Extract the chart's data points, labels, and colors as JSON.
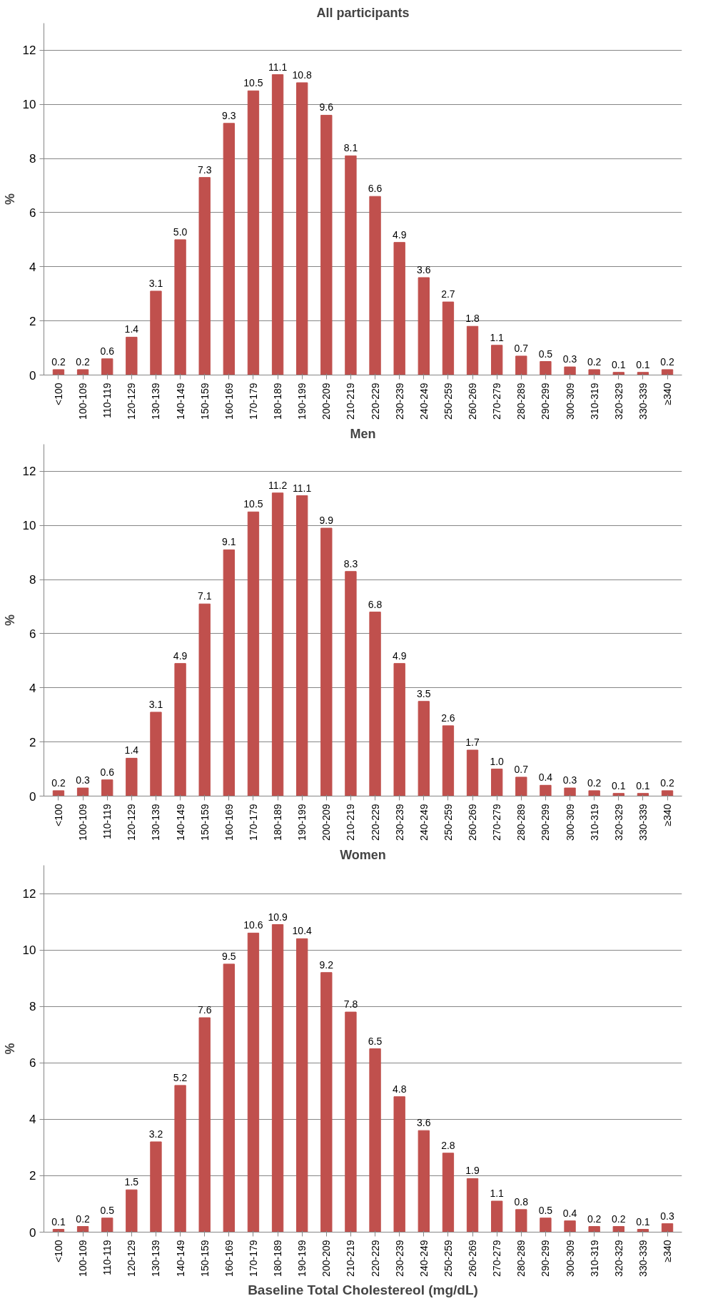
{
  "chart_data": [
    {
      "type": "bar",
      "title": "All participants",
      "ylabel": "%",
      "categories": [
        "<100",
        "100-109",
        "110-119",
        "120-129",
        "130-139",
        "140-149",
        "150-159",
        "160-169",
        "170-179",
        "180-189",
        "190-199",
        "200-209",
        "210-219",
        "220-229",
        "230-239",
        "240-249",
        "250-259",
        "260-269",
        "270-279",
        "280-289",
        "290-299",
        "300-309",
        "310-319",
        "320-329",
        "330-339",
        "≥340"
      ],
      "color": "#c0504d",
      "values": [
        0.2,
        0.2,
        0.6,
        1.4,
        3.1,
        5.0,
        7.3,
        9.3,
        10.5,
        11.1,
        10.8,
        9.6,
        8.1,
        6.6,
        4.9,
        3.6,
        2.7,
        1.8,
        1.1,
        0.7,
        0.5,
        0.3,
        0.2,
        0.1,
        0.1,
        0.2
      ],
      "value_labels": [
        "0.2",
        "0.2",
        "0.6",
        "1.4",
        "3.1",
        "5.0",
        "7.3",
        "9.3",
        "10.5",
        "11.1",
        "10.8",
        "9.6",
        "8.1",
        "6.6",
        "4.9",
        "3.6",
        "2.7",
        "1.8",
        "1.1",
        "0.7",
        "0.5",
        "0.3",
        "0.2",
        "0.1",
        "0.1",
        "0.2"
      ],
      "ylim": [
        0,
        13
      ],
      "yticks": [
        0,
        2,
        4,
        6,
        8,
        10,
        12
      ],
      "grid": "y",
      "legend": false
    },
    {
      "type": "bar",
      "title": "Men",
      "ylabel": "%",
      "categories": [
        "<100",
        "100-109",
        "110-119",
        "120-129",
        "130-139",
        "140-149",
        "150-159",
        "160-169",
        "170-179",
        "180-189",
        "190-199",
        "200-209",
        "210-219",
        "220-229",
        "230-239",
        "240-249",
        "250-259",
        "260-269",
        "270-279",
        "280-289",
        "290-299",
        "300-309",
        "310-319",
        "320-329",
        "330-339",
        "≥340"
      ],
      "color": "#c0504d",
      "values": [
        0.2,
        0.3,
        0.6,
        1.4,
        3.1,
        4.9,
        7.1,
        9.1,
        10.5,
        11.2,
        11.1,
        9.9,
        8.3,
        6.8,
        4.9,
        3.5,
        2.6,
        1.7,
        1.0,
        0.7,
        0.4,
        0.3,
        0.2,
        0.1,
        0.1,
        0.2
      ],
      "value_labels": [
        "0.2",
        "0.3",
        "0.6",
        "1.4",
        "3.1",
        "4.9",
        "7.1",
        "9.1",
        "10.5",
        "11.2",
        "11.1",
        "9.9",
        "8.3",
        "6.8",
        "4.9",
        "3.5",
        "2.6",
        "1.7",
        "1.0",
        "0.7",
        "0.4",
        "0.3",
        "0.2",
        "0.1",
        "0.1",
        "0.2"
      ],
      "ylim": [
        0,
        13
      ],
      "yticks": [
        0,
        2,
        4,
        6,
        8,
        10,
        12
      ],
      "grid": "y",
      "legend": false
    },
    {
      "type": "bar",
      "title": "Women",
      "ylabel": "%",
      "xlabel": "Baseline Total Cholestereol (mg/dL)",
      "categories": [
        "<100",
        "100-109",
        "110-119",
        "120-129",
        "130-139",
        "140-149",
        "150-159",
        "160-169",
        "170-179",
        "180-189",
        "190-199",
        "200-209",
        "210-219",
        "220-229",
        "230-239",
        "240-249",
        "250-259",
        "260-269",
        "270-279",
        "280-289",
        "290-299",
        "300-309",
        "310-319",
        "320-329",
        "330-339",
        "≥340"
      ],
      "color": "#c0504d",
      "values": [
        0.1,
        0.2,
        0.5,
        1.5,
        3.2,
        5.2,
        7.6,
        9.5,
        10.6,
        10.9,
        10.4,
        9.2,
        7.8,
        6.5,
        4.8,
        3.6,
        2.8,
        1.9,
        1.1,
        0.8,
        0.5,
        0.4,
        0.2,
        0.2,
        0.1,
        0.3
      ],
      "value_labels": [
        "0.1",
        "0.2",
        "0.5",
        "1.5",
        "3.2",
        "5.2",
        "7.6",
        "9.5",
        "10.6",
        "10.9",
        "10.4",
        "9.2",
        "7.8",
        "6.5",
        "4.8",
        "3.6",
        "2.8",
        "1.9",
        "1.1",
        "0.8",
        "0.5",
        "0.4",
        "0.2",
        "0.2",
        "0.1",
        "0.3"
      ],
      "ylim": [
        0,
        13
      ],
      "yticks": [
        0,
        2,
        4,
        6,
        8,
        10,
        12
      ],
      "grid": "y",
      "legend": false
    }
  ]
}
